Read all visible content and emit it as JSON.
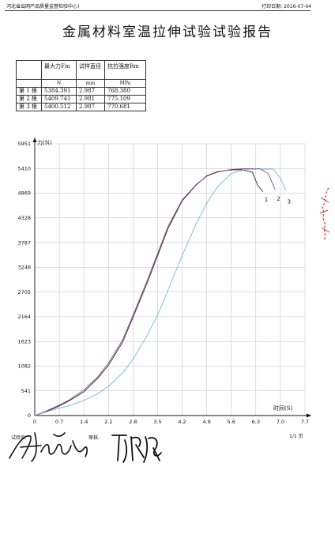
{
  "header": {
    "org": "河北省出网产品质量监督检验中心)",
    "print_date": "打印日期: 2016-07-04"
  },
  "title": "金属材料室温拉伸试验试验报告",
  "results_table": {
    "headers": [
      "",
      "最大力Fm",
      "试样直径",
      "抗拉强度Rm"
    ],
    "units": [
      "",
      "N",
      "mm",
      "MPa"
    ],
    "rows": [
      {
        "label": "第 1 根",
        "fm": "5384.391",
        "d": "2.987",
        "rm": "768.380"
      },
      {
        "label": "第 2 根",
        "fm": "5409.741",
        "d": "2.981",
        "rm": "775.109"
      },
      {
        "label": "第 3 根",
        "fm": "5400.512",
        "d": "2.987",
        "rm": "770.681"
      }
    ]
  },
  "chart_data": {
    "type": "line",
    "ylabel": "力(N)",
    "xlabel": "时间(S)",
    "xlim": [
      0,
      7.7
    ],
    "ylim": [
      0,
      5951
    ],
    "x_ticks": [
      "0",
      "0.7",
      "1.4",
      "2.1",
      "2.8",
      "3.5",
      "4.2",
      "4.9",
      "5.6",
      "6.3",
      "7.0",
      "7.7"
    ],
    "y_ticks": [
      "0",
      "541",
      "1082",
      "1623",
      "2164",
      "2705",
      "3246",
      "3787",
      "4328",
      "4869",
      "5410",
      "5951"
    ],
    "grid": true,
    "series": [
      {
        "name": "1",
        "color": "#2b2b2b",
        "x": [
          0,
          0.3,
          0.7,
          1.0,
          1.4,
          1.8,
          2.1,
          2.5,
          2.8,
          3.2,
          3.5,
          3.8,
          4.2,
          4.6,
          4.9,
          5.2,
          5.6,
          5.9,
          6.2,
          6.35,
          6.5
        ],
        "y": [
          0,
          80,
          210,
          330,
          520,
          820,
          1100,
          1600,
          2150,
          2900,
          3500,
          4100,
          4700,
          5050,
          5250,
          5340,
          5380,
          5384,
          5330,
          5050,
          4900
        ]
      },
      {
        "name": "2",
        "color": "#8a4a8a",
        "x": [
          0,
          0.3,
          0.7,
          1.0,
          1.4,
          1.8,
          2.1,
          2.5,
          2.8,
          3.2,
          3.5,
          3.8,
          4.2,
          4.6,
          4.9,
          5.2,
          5.6,
          6.0,
          6.4,
          6.65,
          6.85
        ],
        "y": [
          0,
          90,
          230,
          350,
          560,
          850,
          1150,
          1650,
          2200,
          2950,
          3550,
          4150,
          4720,
          5060,
          5240,
          5330,
          5390,
          5405,
          5409,
          5300,
          4950
        ]
      },
      {
        "name": "3",
        "color": "#6fb8d8",
        "x": [
          0,
          0.5,
          1.0,
          1.4,
          1.8,
          2.1,
          2.5,
          2.8,
          3.2,
          3.5,
          3.8,
          4.2,
          4.6,
          4.9,
          5.2,
          5.6,
          6.0,
          6.5,
          6.8,
          7.0,
          7.15
        ],
        "y": [
          0,
          120,
          220,
          330,
          480,
          640,
          930,
          1230,
          1750,
          2200,
          2750,
          3500,
          4200,
          4650,
          5000,
          5300,
          5390,
          5400,
          5395,
          5200,
          4920
        ]
      }
    ]
  },
  "footer": {
    "tester_label": "试验员:",
    "reviewer_label": "审核:",
    "page": "1/1 页"
  }
}
